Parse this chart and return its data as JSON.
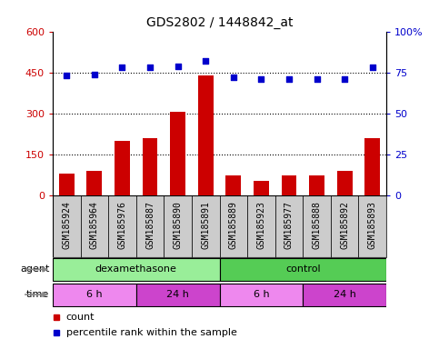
{
  "title": "GDS2802 / 1448842_at",
  "samples": [
    "GSM185924",
    "GSM185964",
    "GSM185976",
    "GSM185887",
    "GSM185890",
    "GSM185891",
    "GSM185889",
    "GSM185923",
    "GSM185977",
    "GSM185888",
    "GSM185892",
    "GSM185893"
  ],
  "counts": [
    80,
    90,
    200,
    210,
    305,
    440,
    75,
    55,
    75,
    75,
    90,
    210
  ],
  "percentile_ranks": [
    73,
    74,
    78,
    78,
    79,
    82,
    72,
    71,
    71,
    71,
    71,
    78
  ],
  "left_yaxis": {
    "min": 0,
    "max": 600,
    "ticks": [
      0,
      150,
      300,
      450,
      600
    ],
    "label_color": "#cc0000"
  },
  "right_yaxis": {
    "min": 0,
    "max": 100,
    "ticks": [
      0,
      25,
      50,
      75,
      100
    ],
    "label_color": "#0000cc"
  },
  "bar_color": "#cc0000",
  "dot_color": "#0000cc",
  "sample_label_bg": "#cccccc",
  "agent_row": {
    "label": "agent",
    "groups": [
      {
        "text": "dexamethasone",
        "start": 0,
        "end": 6,
        "color": "#99ee99"
      },
      {
        "text": "control",
        "start": 6,
        "end": 12,
        "color": "#55cc55"
      }
    ]
  },
  "time_row": {
    "label": "time",
    "groups": [
      {
        "text": "6 h",
        "start": 0,
        "end": 3,
        "color": "#ee88ee"
      },
      {
        "text": "24 h",
        "start": 3,
        "end": 6,
        "color": "#cc44cc"
      },
      {
        "text": "6 h",
        "start": 6,
        "end": 9,
        "color": "#ee88ee"
      },
      {
        "text": "24 h",
        "start": 9,
        "end": 12,
        "color": "#cc44cc"
      }
    ]
  },
  "legend": [
    {
      "color": "#cc0000",
      "label": "count"
    },
    {
      "color": "#0000cc",
      "label": "percentile rank within the sample"
    }
  ],
  "tick_fontsize": 8,
  "sample_fontsize": 7,
  "label_fontsize": 8,
  "title_fontsize": 10
}
